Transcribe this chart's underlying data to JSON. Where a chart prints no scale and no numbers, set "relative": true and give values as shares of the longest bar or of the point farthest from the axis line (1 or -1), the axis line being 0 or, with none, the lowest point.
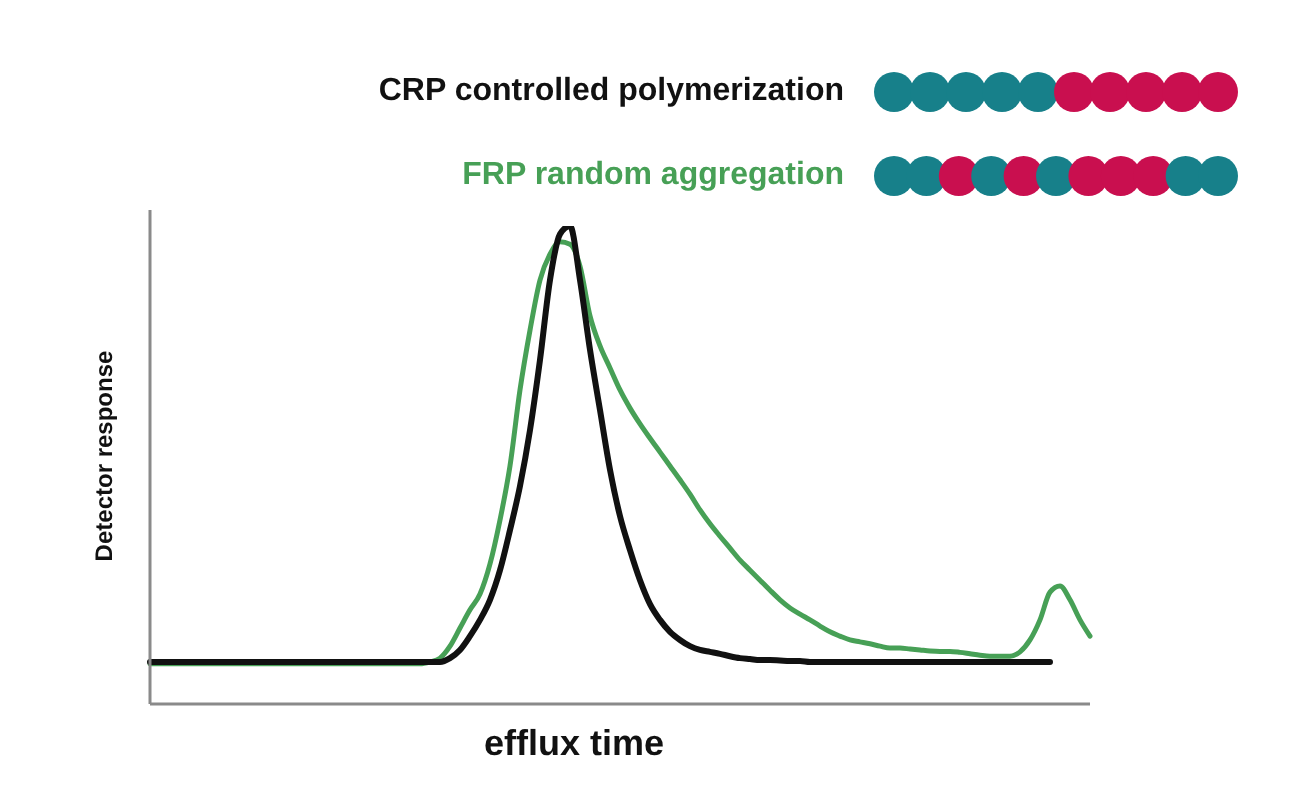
{
  "chart_data": {
    "type": "line",
    "relative": true,
    "xlabel": "efflux time",
    "ylabel": "Detector response",
    "legend": "top right",
    "categories": [
      null,
      null,
      null,
      null,
      null,
      null,
      null,
      null,
      null,
      null,
      null,
      null,
      null,
      null,
      null,
      null,
      null,
      null,
      null,
      null,
      null,
      null,
      null,
      null,
      null,
      null,
      null,
      null,
      null,
      null,
      null,
      null,
      null,
      null,
      null,
      null,
      null,
      null,
      null,
      null,
      null,
      null,
      null,
      null,
      null,
      null,
      null,
      null,
      null,
      null,
      null,
      null,
      null,
      null,
      null,
      null,
      null,
      null,
      null,
      null,
      null,
      null,
      null,
      null,
      null,
      null,
      null,
      null,
      null,
      null,
      null,
      null,
      null,
      null,
      null,
      null,
      null,
      null,
      null,
      null,
      null,
      null,
      null,
      null,
      null,
      null,
      null,
      null,
      null,
      null,
      null,
      null,
      null,
      null,
      null
    ],
    "series": [
      {
        "name": "CRP controlled polymerization",
        "color": "#111111",
        "values": [
          0.088,
          0.088,
          0.088,
          0.088,
          0.088,
          0.088,
          0.088,
          0.088,
          0.088,
          0.088,
          0.088,
          0.088,
          0.088,
          0.088,
          0.088,
          0.088,
          0.088,
          0.088,
          0.088,
          0.088,
          0.088,
          0.088,
          0.088,
          0.088,
          0.088,
          0.088,
          0.088,
          0.088,
          0.088,
          0.088,
          0.096,
          0.113,
          0.142,
          0.176,
          0.218,
          0.28,
          0.364,
          0.456,
          0.573,
          0.72,
          0.887,
          0.983,
          1.0,
          0.887,
          0.741,
          0.615,
          0.49,
          0.393,
          0.322,
          0.259,
          0.209,
          0.176,
          0.151,
          0.134,
          0.121,
          0.113,
          0.109,
          0.105,
          0.1,
          0.096,
          0.094,
          0.092,
          0.092,
          0.091,
          0.09,
          0.09,
          0.088,
          0.088,
          0.088,
          0.088,
          0.088,
          0.088,
          0.088,
          0.088,
          0.088,
          0.088,
          0.088,
          0.088,
          0.088,
          0.088,
          0.088,
          0.088,
          0.088,
          0.088,
          0.088,
          0.088,
          0.088,
          0.088,
          0.088,
          0.088,
          0.088,
          null,
          null,
          null,
          null
        ]
      },
      {
        "name": "FRP random aggregation",
        "color": "#47a056",
        "values": [
          0.084,
          0.084,
          0.084,
          0.084,
          0.084,
          0.084,
          0.084,
          0.084,
          0.084,
          0.084,
          0.084,
          0.084,
          0.084,
          0.084,
          0.084,
          0.084,
          0.084,
          0.084,
          0.084,
          0.084,
          0.084,
          0.084,
          0.084,
          0.084,
          0.084,
          0.084,
          0.084,
          0.084,
          0.088,
          0.096,
          0.121,
          0.159,
          0.197,
          0.23,
          0.293,
          0.385,
          0.498,
          0.657,
          0.782,
          0.887,
          0.941,
          0.967,
          0.962,
          0.916,
          0.812,
          0.749,
          0.703,
          0.657,
          0.619,
          0.586,
          0.556,
          0.527,
          0.498,
          0.469,
          0.439,
          0.406,
          0.377,
          0.351,
          0.326,
          0.301,
          0.28,
          0.259,
          0.238,
          0.218,
          0.201,
          0.188,
          0.176,
          0.163,
          0.151,
          0.142,
          0.134,
          0.13,
          0.126,
          0.121,
          0.117,
          0.117,
          0.115,
          0.113,
          0.111,
          0.11,
          0.11,
          0.108,
          0.105,
          0.102,
          0.1,
          0.1,
          0.1,
          0.109,
          0.134,
          0.176,
          0.234,
          0.247,
          0.218,
          0.176,
          0.142
        ]
      }
    ]
  }
}
